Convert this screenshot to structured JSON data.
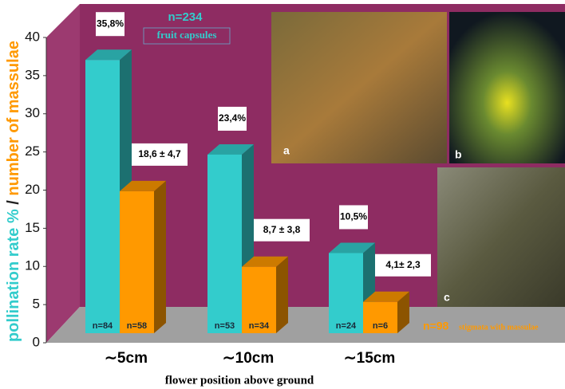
{
  "chart_data": {
    "type": "bar3d",
    "categories": [
      "∼5cm",
      "∼10cm",
      "∼15cm"
    ],
    "series": [
      {
        "name": "pollination rate %",
        "color": "#33cccc",
        "values": [
          35.8,
          23.4,
          10.5
        ],
        "value_labels": [
          "35,8%",
          "23,4%",
          "10,5%"
        ],
        "sample_labels": [
          "n=84",
          "n=53",
          "n=24"
        ]
      },
      {
        "name": "number of massulae",
        "color": "#ff9900",
        "values": [
          18.6,
          8.7,
          4.1
        ],
        "value_labels": [
          "18,6 ± 4,7",
          "8,7 ± 3,8",
          "4,1± 2,3"
        ],
        "sample_labels": [
          "n=58",
          "n=34",
          "n=6"
        ]
      }
    ],
    "ylabel_separator": "/",
    "xlabel": "flower position above ground",
    "ylim": [
      0,
      40
    ],
    "yticks": [
      0,
      5,
      10,
      15,
      20,
      25,
      30,
      35,
      40
    ],
    "annotations": {
      "n_capsules": "n=234",
      "capsules": "fruit capsules",
      "n_stigmata": "n=98",
      "stigmata": "stigmata with massulae"
    },
    "photo_labels": [
      "a",
      "b",
      "c"
    ]
  }
}
